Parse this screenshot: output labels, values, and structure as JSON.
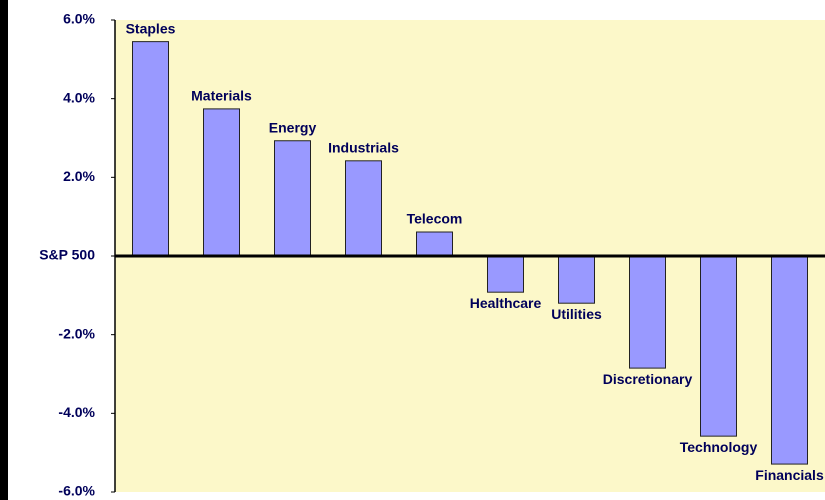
{
  "chart_data": {
    "type": "bar",
    "categories": [
      "Staples",
      "Materials",
      "Energy",
      "Industrials",
      "Telecom",
      "Healthcare",
      "Utilities",
      "Discretionary",
      "Technology",
      "Financials"
    ],
    "values": [
      5.45,
      3.74,
      2.93,
      2.42,
      0.61,
      -0.92,
      -1.2,
      -2.85,
      -4.58,
      -5.29
    ],
    "color": "#9999ff",
    "ylim": [
      -6,
      6
    ],
    "yticks": [
      {
        "value": 6,
        "label": "6.0%"
      },
      {
        "value": 4,
        "label": "4.0%"
      },
      {
        "value": 2,
        "label": "2.0%"
      },
      {
        "value": 0,
        "label": "S&P 500"
      },
      {
        "value": -2,
        "label": "-2.0%"
      },
      {
        "value": -4,
        "label": "-4.0%"
      },
      {
        "value": -6,
        "label": "-6.0%"
      }
    ]
  }
}
